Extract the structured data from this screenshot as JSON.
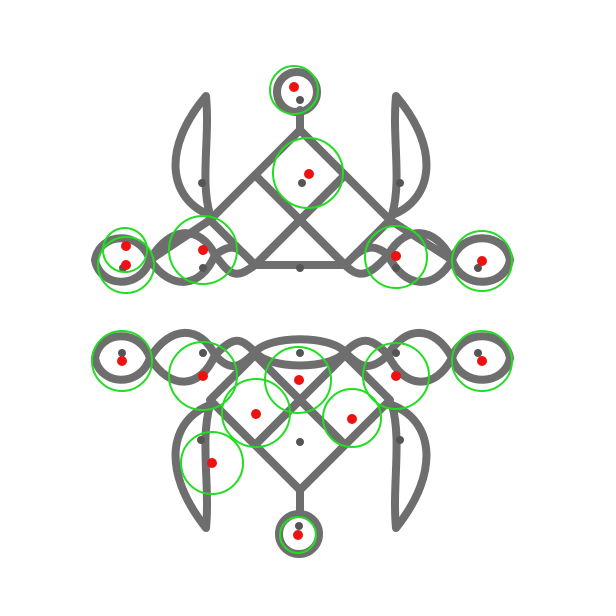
{
  "colors": {
    "background": "#ffffff",
    "line": "#6e6e6e",
    "line_highlight": "#d2d2d2",
    "dot": "#555555",
    "circle_marker": "#22dd22",
    "point_marker": "#ee1111"
  },
  "annotation_count": 18
}
